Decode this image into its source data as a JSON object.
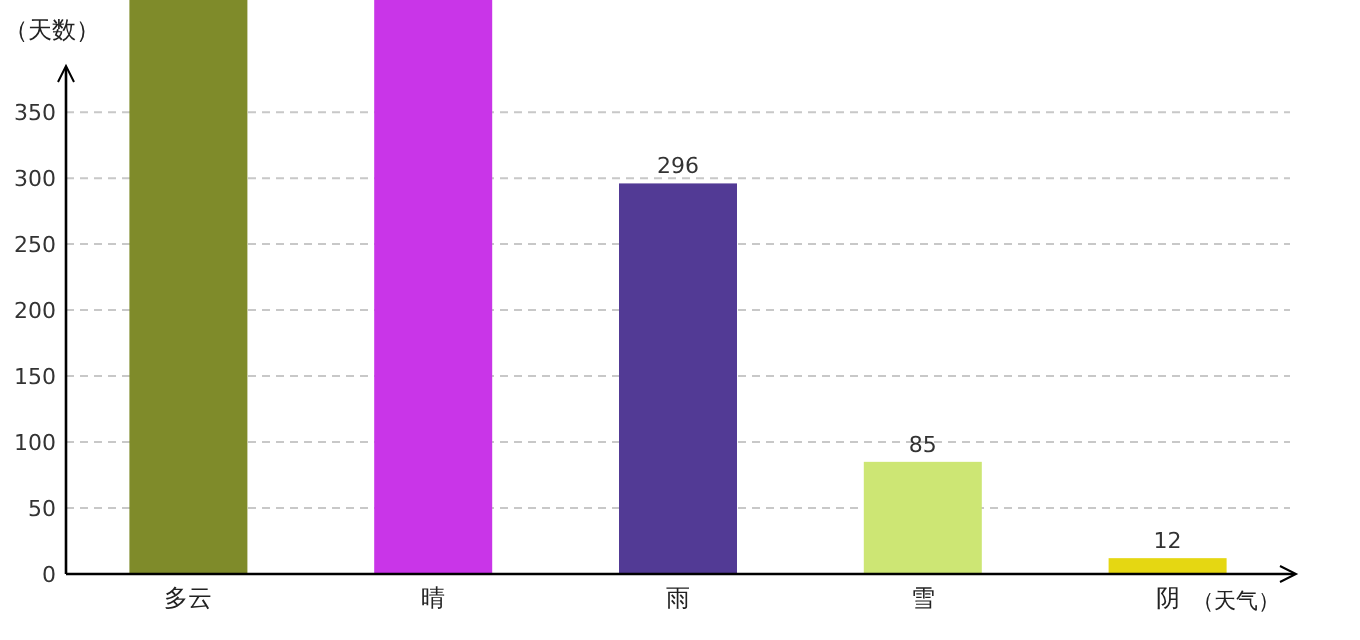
{
  "chart_data": {
    "type": "bar",
    "xlabel": "（天气）",
    "ylabel": "（天数）",
    "categories": [
      "多云",
      "晴",
      "雨",
      "雪",
      "阴"
    ],
    "values": [
      435,
      435,
      296,
      85,
      12
    ],
    "colors": [
      "#7f8b2a",
      "#c935e8",
      "#523a95",
      "#cde674",
      "#e5d712"
    ],
    "value_labels": [
      null,
      null,
      "296",
      "85",
      "12"
    ],
    "ylim": [
      0,
      435
    ],
    "yticks": [
      0,
      50,
      100,
      150,
      200,
      250,
      300,
      350
    ],
    "grid": "y"
  }
}
